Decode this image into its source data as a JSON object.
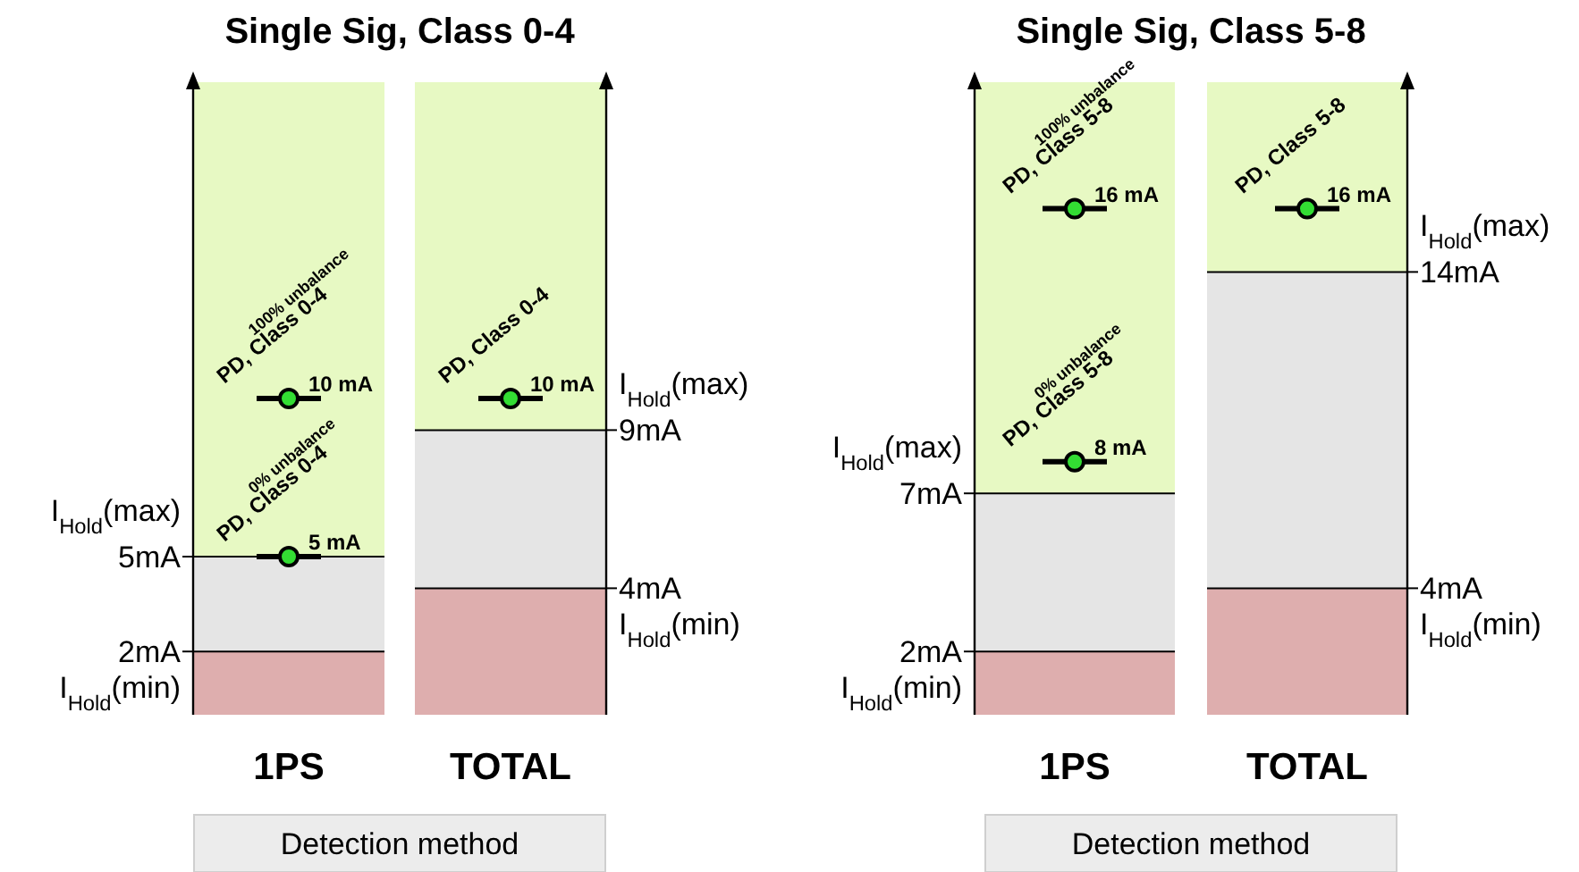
{
  "chart_data": [
    {
      "type": "bar",
      "stacked": true,
      "title": "Single Sig, Class 0-4",
      "xlabel": "Detection method",
      "categories": [
        "1PS",
        "TOTAL"
      ],
      "ylim": [
        0,
        20
      ],
      "yticks": [
        {
          "value": 2,
          "label": "2mA"
        },
        {
          "value": 5,
          "label": "5mA"
        }
      ],
      "y2lim": [
        0,
        20
      ],
      "y2ticks": [
        {
          "value": 4,
          "label": "4mA"
        },
        {
          "value": 9,
          "label": "9mA"
        }
      ],
      "series": [
        {
          "color": "#deaeae",
          "values": [
            2,
            4
          ]
        },
        {
          "color": "#e5e5e5",
          "values": [
            3,
            5
          ]
        },
        {
          "color": "#e7f9c3",
          "values": [
            15,
            11
          ]
        },
        {
          "type": "scatter",
          "x": [
            "1PS",
            "1PS",
            "TOTAL"
          ],
          "values": [
            5,
            10,
            10
          ],
          "color": "#33dd33",
          "marker": "circle",
          "value_labels": [
            "5 mA",
            "10 mA",
            "10 mA"
          ]
        }
      ],
      "ref_lines": [
        {
          "axis": "y",
          "value": 2,
          "label": "I$_{Hold}$(min)"
        },
        {
          "axis": "y",
          "value": 5,
          "label": "I$_{Hold}$(max)"
        },
        {
          "axis": "y2",
          "value": 4,
          "label": "I$_{Hold}$(min)"
        },
        {
          "axis": "y2",
          "value": 9,
          "label": "I$_{Hold}$(max)"
        }
      ],
      "annotations": [
        {
          "text": "PD, Class 0-4\n0% unbalance",
          "x": "1PS",
          "y": 5
        },
        {
          "text": "PD, Class 0-4\n100% unbalance",
          "x": "1PS",
          "y": 10
        },
        {
          "text": "PD, Class 0-4",
          "x": "TOTAL",
          "y": 10
        }
      ]
    },
    {
      "type": "bar",
      "stacked": true,
      "title": "Single Sig, Class 5-8",
      "xlabel": "Detection method",
      "categories": [
        "1PS",
        "TOTAL"
      ],
      "ylim": [
        0,
        20
      ],
      "yticks": [
        {
          "value": 2,
          "label": "2mA"
        },
        {
          "value": 7,
          "label": "7mA"
        }
      ],
      "y2lim": [
        0,
        20
      ],
      "y2ticks": [
        {
          "value": 4,
          "label": "4mA"
        },
        {
          "value": 14,
          "label": "14mA"
        }
      ],
      "series": [
        {
          "color": "#deaeae",
          "values": [
            2,
            4
          ]
        },
        {
          "color": "#e5e5e5",
          "values": [
            5,
            10
          ]
        },
        {
          "color": "#e7f9c3",
          "values": [
            13,
            6
          ]
        },
        {
          "type": "scatter",
          "x": [
            "1PS",
            "1PS",
            "TOTAL"
          ],
          "values": [
            8,
            16,
            16
          ],
          "color": "#33dd33",
          "marker": "circle",
          "value_labels": [
            "8 mA",
            "16 mA",
            "16 mA"
          ]
        }
      ],
      "ref_lines": [
        {
          "axis": "y",
          "value": 2,
          "label": "I$_{Hold}$(min)"
        },
        {
          "axis": "y",
          "value": 7,
          "label": "I$_{Hold}$(max)"
        },
        {
          "axis": "y2",
          "value": 4,
          "label": "I$_{Hold}$(min)"
        },
        {
          "axis": "y2",
          "value": 14,
          "label": "I$_{Hold}$(max)"
        }
      ],
      "annotations": [
        {
          "text": "PD, Class 5-8\n0% unbalance",
          "x": "1PS",
          "y": 8
        },
        {
          "text": "PD, Class 5-8\n100% unbalance",
          "x": "1PS",
          "y": 16
        },
        {
          "text": "PD, Class 5-8",
          "x": "TOTAL",
          "y": 16
        }
      ]
    }
  ]
}
